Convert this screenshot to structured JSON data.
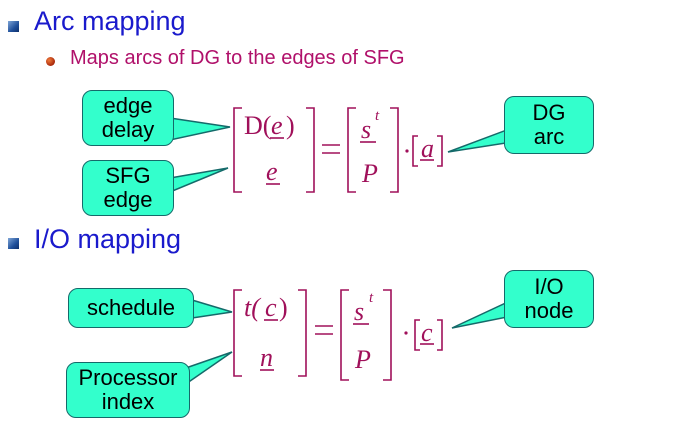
{
  "sections": [
    {
      "heading": "Arc mapping",
      "subbullet": "Maps arcs of DG to the edges of SFG",
      "callouts": {
        "left_top": [
          "edge",
          "delay"
        ],
        "left_bottom": [
          "SFG",
          "edge"
        ],
        "right": [
          "DG",
          "arc"
        ]
      },
      "equation": {
        "lhs_top": [
          "D(",
          "e",
          ")"
        ],
        "lhs_bottom": "e",
        "rhs_top": "s",
        "rhs_top_sup": "t",
        "rhs_bottom": "P",
        "vector": "a"
      }
    },
    {
      "heading": "I/O mapping",
      "callouts": {
        "left_top": [
          "schedule"
        ],
        "left_bottom": [
          "Processor",
          "index"
        ],
        "right": [
          "I/O",
          "node"
        ]
      },
      "equation": {
        "lhs_top": [
          "t(",
          "c",
          ")"
        ],
        "lhs_bottom": "n",
        "rhs_top": "s",
        "rhs_top_sup": "t",
        "rhs_bottom": "P",
        "vector": "c"
      }
    }
  ],
  "colors": {
    "heading": "#1a1acc",
    "subtext": "#b0106a",
    "math": "#a0105a",
    "callout_fill": "#33ffcc",
    "callout_border": "#156a6a"
  }
}
